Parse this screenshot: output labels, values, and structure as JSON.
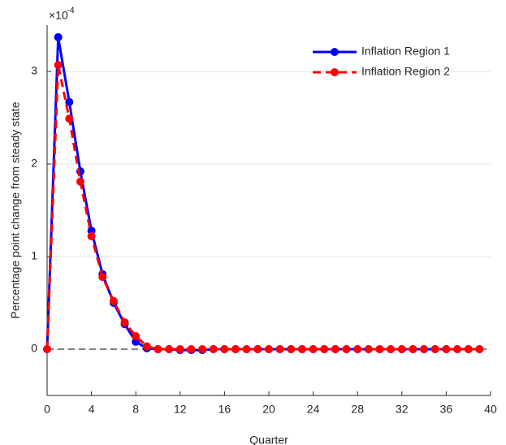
{
  "chart_data": {
    "type": "line",
    "x_label": "Quarter",
    "y_label": "Percentage point change from steady state",
    "y_exponent_base": "×10",
    "y_exponent_power": "-4",
    "x": [
      0,
      1,
      2,
      3,
      4,
      5,
      6,
      7,
      8,
      9,
      10,
      11,
      12,
      13,
      14,
      15,
      16,
      17,
      18,
      19,
      20,
      21,
      22,
      23,
      24,
      25,
      26,
      27,
      28,
      29,
      30,
      31,
      32,
      33,
      34,
      35,
      36,
      37,
      38,
      39
    ],
    "series": [
      {
        "name": "Inflation Region 1",
        "color": "#0000ff",
        "dashed": false,
        "values": [
          0,
          3.37,
          2.67,
          1.92,
          1.28,
          0.81,
          0.5,
          0.27,
          0.08,
          0.01,
          0,
          0,
          -0.01,
          -0.01,
          -0.01,
          0,
          0,
          0,
          0,
          0,
          0,
          0,
          0,
          0,
          0,
          0,
          0,
          0,
          0,
          0,
          0,
          0,
          0,
          0,
          0,
          0,
          0,
          0,
          0,
          0
        ]
      },
      {
        "name": "Inflation Region 2",
        "color": "#ff0000",
        "dashed": true,
        "values": [
          0,
          3.07,
          2.49,
          1.81,
          1.22,
          0.78,
          0.52,
          0.29,
          0.14,
          0.03,
          0,
          0,
          0,
          0,
          0,
          0,
          0,
          0,
          0,
          0,
          0,
          0,
          0,
          0,
          0,
          0,
          0,
          0,
          0,
          0,
          0,
          0,
          0,
          0,
          0,
          0,
          0,
          0,
          0,
          0
        ]
      }
    ],
    "xlim": [
      0,
      40
    ],
    "xticks": [
      0,
      4,
      8,
      12,
      16,
      20,
      24,
      28,
      32,
      36,
      40
    ],
    "ylim": [
      -0.5,
      3.5
    ],
    "yticks": [
      0,
      1,
      2,
      3
    ],
    "grid": true,
    "zero_line": true,
    "legend": "upper right"
  }
}
